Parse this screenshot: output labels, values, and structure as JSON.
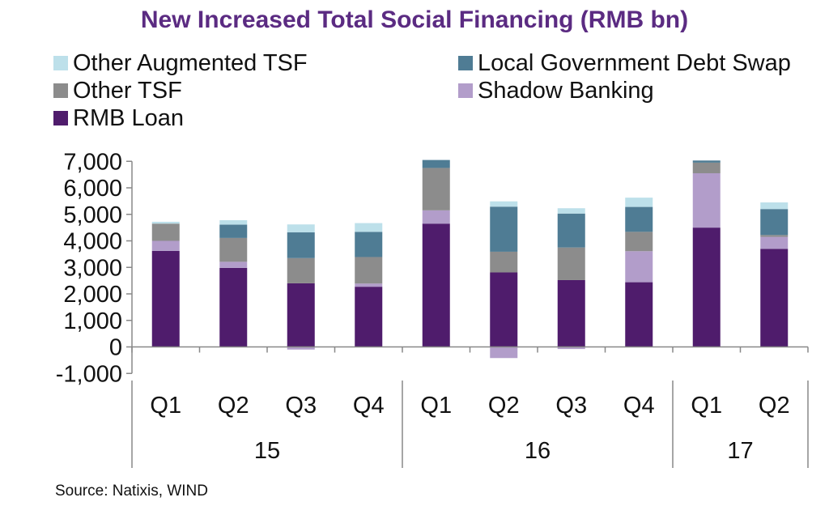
{
  "chart_data": {
    "type": "bar",
    "stacked": true,
    "title": "New Increased Total Social Financing (RMB bn)",
    "categories": [
      "Q1",
      "Q2",
      "Q3",
      "Q4",
      "Q1",
      "Q2",
      "Q3",
      "Q4",
      "Q1",
      "Q2"
    ],
    "groups": [
      {
        "label": "15",
        "count": 4
      },
      {
        "label": "16",
        "count": 4
      },
      {
        "label": "17",
        "count": 2
      }
    ],
    "series": [
      {
        "name": "RMB Loan",
        "color": "#4f1c6c",
        "values": [
          3620,
          2980,
          2400,
          2270,
          4650,
          2810,
          2520,
          2440,
          4500,
          3700
        ]
      },
      {
        "name": "Shadow Banking",
        "color": "#b29dca",
        "values": [
          380,
          230,
          -100,
          120,
          500,
          -420,
          -80,
          1170,
          2050,
          450
        ]
      },
      {
        "name": "Other TSF",
        "color": "#8c8c8c",
        "values": [
          650,
          900,
          950,
          1000,
          1600,
          780,
          1230,
          730,
          400,
          70
        ]
      },
      {
        "name": "Local Government Debt Swap",
        "color": "#4f7c94",
        "values": [
          0,
          500,
          970,
          950,
          300,
          1700,
          1280,
          940,
          80,
          980
        ]
      },
      {
        "name": "Other Augmented TSF",
        "color": "#bde0ea",
        "values": [
          70,
          170,
          300,
          330,
          0,
          200,
          200,
          350,
          0,
          250
        ]
      }
    ],
    "legend_order": [
      "Other Augmented TSF",
      "Local Government Debt Swap",
      "Other TSF",
      "Shadow Banking",
      "RMB Loan"
    ],
    "ylim": [
      -1000,
      7000
    ],
    "yticks": [
      -1000,
      0,
      1000,
      2000,
      3000,
      4000,
      5000,
      6000,
      7000
    ],
    "legend_position": "top",
    "grid": false
  },
  "title_color": "#5b2b82",
  "source": "Source: Natixis, WIND"
}
